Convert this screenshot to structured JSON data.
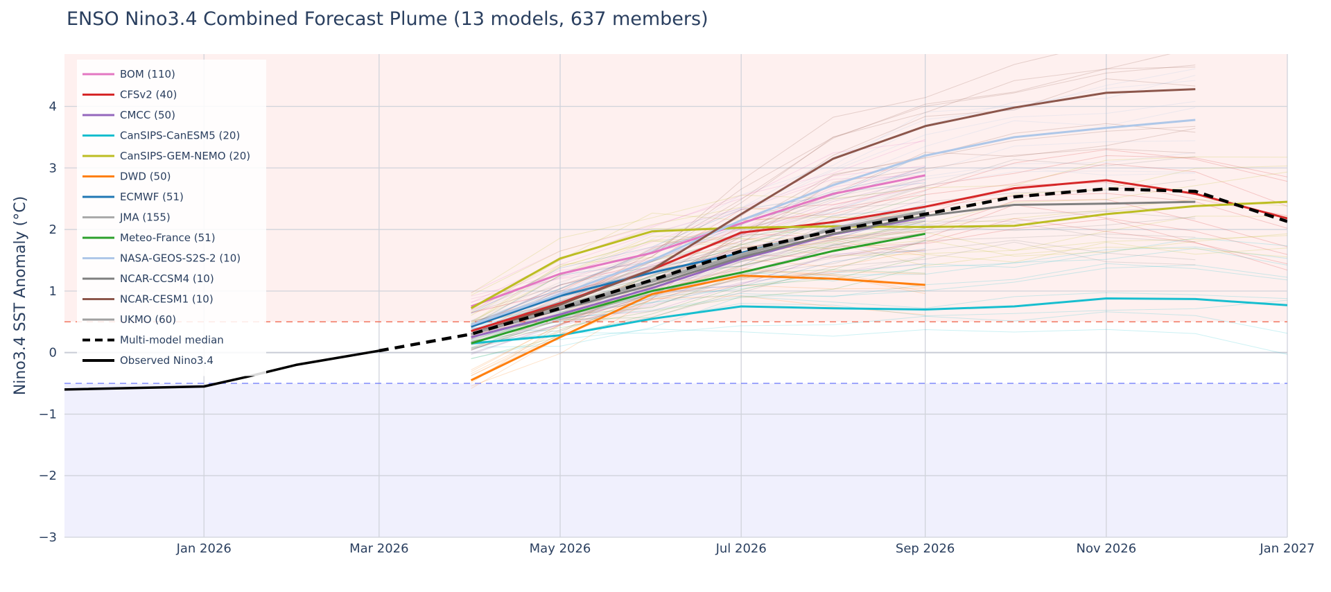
{
  "chart_data": {
    "type": "line",
    "title": "ENSO Nino3.4 Combined Forecast Plume (13 models, 637 members)",
    "xlabel": "",
    "ylabel": "Nino3.4 SST Anomaly (°C)",
    "xlim": [
      "2025-11-15",
      "2027-01-01"
    ],
    "ylim": [
      -3,
      4.85
    ],
    "x_ticks": [
      {
        "date": "2026-01-01",
        "label": "Jan 2026"
      },
      {
        "date": "2026-03-01",
        "label": "Mar 2026"
      },
      {
        "date": "2026-05-01",
        "label": "May 2026"
      },
      {
        "date": "2026-07-01",
        "label": "Jul 2026"
      },
      {
        "date": "2026-09-01",
        "label": "Sep 2026"
      },
      {
        "date": "2026-11-01",
        "label": "Nov 2026"
      },
      {
        "date": "2027-01-01",
        "label": "Jan 2027"
      }
    ],
    "y_ticks": [
      {
        "value": 4,
        "label": "4"
      },
      {
        "value": 3,
        "label": "3"
      },
      {
        "value": 2,
        "label": "2"
      },
      {
        "value": 1,
        "label": "1"
      },
      {
        "value": 0,
        "label": "0"
      },
      {
        "value": -1,
        "label": "−1"
      },
      {
        "value": -2,
        "label": "−2"
      },
      {
        "value": -3,
        "label": "−3"
      }
    ],
    "grid": true,
    "legend_position": "top-left",
    "thresholds": [
      {
        "value": 0.5,
        "color": "#ef553b"
      },
      {
        "value": -0.5,
        "color": "#636efa"
      }
    ],
    "bands": [
      {
        "from": 0.5,
        "to": 4.85,
        "color": "#fef0ef"
      },
      {
        "from": -3,
        "to": -0.5,
        "color": "#f0f0fd"
      }
    ],
    "series": [
      {
        "name": "BOM (110)",
        "color": "#e377c2",
        "x": [
          "2026-04-01",
          "2026-05-01",
          "2026-06-01",
          "2026-07-01",
          "2026-08-01",
          "2026-09-01"
        ],
        "y": [
          0.75,
          1.28,
          1.62,
          2.1,
          2.58,
          2.88
        ]
      },
      {
        "name": "CFSv2 (40)",
        "color": "#d62728",
        "x": [
          "2026-04-01",
          "2026-05-01",
          "2026-06-01",
          "2026-07-01",
          "2026-08-01",
          "2026-09-01",
          "2026-10-01",
          "2026-11-01",
          "2026-12-01",
          "2027-01-01"
        ],
        "y": [
          0.35,
          0.8,
          1.35,
          1.95,
          2.12,
          2.37,
          2.67,
          2.8,
          2.58,
          2.18
        ]
      },
      {
        "name": "CMCC (50)",
        "color": "#9467bd",
        "x": [
          "2026-04-01",
          "2026-05-01",
          "2026-06-01",
          "2026-07-01",
          "2026-08-01",
          "2026-09-01"
        ],
        "y": [
          0.25,
          0.62,
          1.05,
          1.52,
          1.92,
          2.2
        ]
      },
      {
        "name": "CanSIPS-CanESM5 (20)",
        "color": "#17becf",
        "x": [
          "2026-04-01",
          "2026-05-01",
          "2026-06-01",
          "2026-07-01",
          "2026-08-01",
          "2026-09-01",
          "2026-10-01",
          "2026-11-01",
          "2026-12-01",
          "2027-01-01"
        ],
        "y": [
          0.15,
          0.28,
          0.55,
          0.75,
          0.72,
          0.7,
          0.75,
          0.88,
          0.87,
          0.77
        ]
      },
      {
        "name": "CanSIPS-GEM-NEMO (20)",
        "color": "#bcbd22",
        "x": [
          "2026-04-01",
          "2026-05-01",
          "2026-06-01",
          "2026-07-01",
          "2026-08-01",
          "2026-09-01",
          "2026-10-01",
          "2026-11-01",
          "2026-12-01",
          "2027-01-01"
        ],
        "y": [
          0.72,
          1.53,
          1.97,
          2.03,
          2.05,
          2.04,
          2.06,
          2.25,
          2.38,
          2.45
        ]
      },
      {
        "name": "DWD (50)",
        "color": "#ff7f0e",
        "x": [
          "2026-04-01",
          "2026-05-01",
          "2026-06-01",
          "2026-07-01",
          "2026-08-01",
          "2026-09-01"
        ],
        "y": [
          -0.45,
          0.25,
          0.95,
          1.25,
          1.2,
          1.1
        ]
      },
      {
        "name": "ECMWF (51)",
        "color": "#1f77b4",
        "x": [
          "2026-04-01",
          "2026-05-01",
          "2026-06-01",
          "2026-07-01",
          "2026-08-01",
          "2026-09-01"
        ],
        "y": [
          0.42,
          0.92,
          1.3,
          1.62,
          2.0,
          2.3
        ]
      },
      {
        "name": "JMA (155)",
        "color": "#aaaaaa",
        "x": [
          "2026-04-01",
          "2026-05-01",
          "2026-06-01",
          "2026-07-01",
          "2026-08-01",
          "2026-09-01"
        ],
        "y": [
          0.3,
          0.75,
          1.18,
          1.6,
          2.02,
          2.3
        ]
      },
      {
        "name": "Meteo-France (51)",
        "color": "#2ca02c",
        "x": [
          "2026-04-01",
          "2026-05-01",
          "2026-06-01",
          "2026-07-01",
          "2026-08-01",
          "2026-09-01"
        ],
        "y": [
          0.15,
          0.58,
          1.0,
          1.3,
          1.65,
          1.93
        ]
      },
      {
        "name": "NASA-GEOS-S2S-2 (10)",
        "color": "#aec7e8",
        "x": [
          "2026-04-01",
          "2026-05-01",
          "2026-06-01",
          "2026-07-01",
          "2026-08-01",
          "2026-09-01",
          "2026-10-01",
          "2026-11-01",
          "2026-12-01"
        ],
        "y": [
          0.45,
          0.95,
          1.5,
          2.15,
          2.72,
          3.2,
          3.5,
          3.65,
          3.78
        ]
      },
      {
        "name": "NCAR-CCSM4 (10)",
        "color": "#7f7f7f",
        "x": [
          "2026-04-01",
          "2026-05-01",
          "2026-06-01",
          "2026-07-01",
          "2026-08-01",
          "2026-09-01",
          "2026-10-01",
          "2026-11-01",
          "2026-12-01"
        ],
        "y": [
          0.3,
          0.7,
          1.1,
          1.55,
          1.93,
          2.22,
          2.4,
          2.42,
          2.45
        ]
      },
      {
        "name": "NCAR-CESM1 (10)",
        "color": "#8c564b",
        "x": [
          "2026-04-01",
          "2026-05-01",
          "2026-06-01",
          "2026-07-01",
          "2026-08-01",
          "2026-09-01",
          "2026-10-01",
          "2026-11-01",
          "2026-12-01"
        ],
        "y": [
          0.3,
          0.78,
          1.35,
          2.25,
          3.15,
          3.68,
          3.98,
          4.22,
          4.28
        ]
      },
      {
        "name": "UKMO (60)",
        "color": "#a0a0a0",
        "x": [
          "2026-04-01",
          "2026-05-01",
          "2026-06-01",
          "2026-07-01",
          "2026-08-01",
          "2026-09-01"
        ],
        "y": [
          0.3,
          0.72,
          1.15,
          1.58,
          2.0,
          2.28
        ]
      },
      {
        "name": "Multi-model median",
        "color": "#000000",
        "dash": "dash",
        "x": [
          "2026-03-01",
          "2026-04-01",
          "2026-05-01",
          "2026-06-01",
          "2026-07-01",
          "2026-08-01",
          "2026-09-01",
          "2026-10-01",
          "2026-11-01",
          "2026-12-01",
          "2027-01-01"
        ],
        "y": [
          0.03,
          0.3,
          0.72,
          1.18,
          1.65,
          1.98,
          2.25,
          2.53,
          2.66,
          2.62,
          2.13
        ]
      },
      {
        "name": "Observed Nino3.4",
        "color": "#000000",
        "x": [
          "2025-11-15",
          "2026-01-01",
          "2026-01-15",
          "2026-02-01",
          "2026-03-01"
        ],
        "y": [
          -0.6,
          -0.55,
          -0.4,
          -0.2,
          0.03
        ]
      }
    ]
  }
}
